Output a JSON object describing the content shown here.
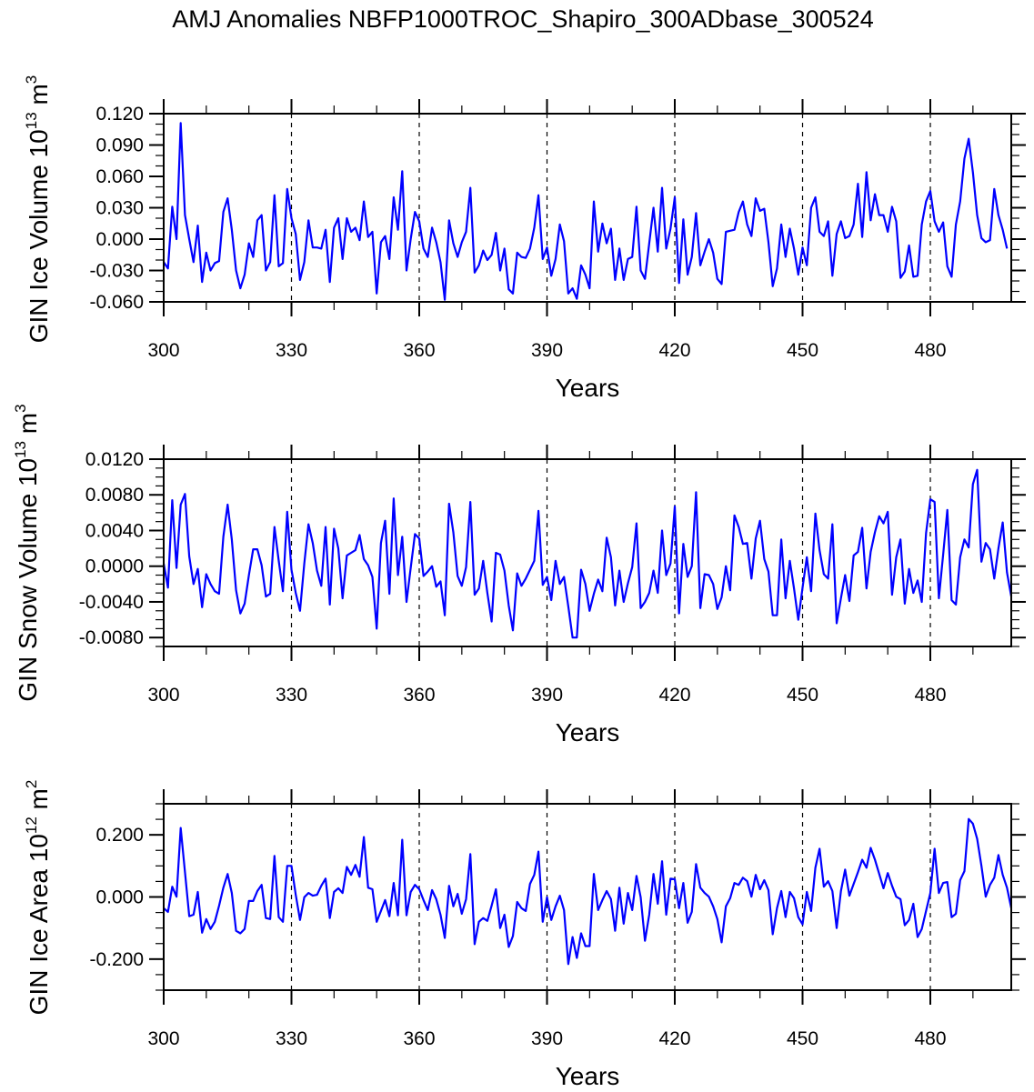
{
  "chart_data": [
    {
      "type": "line",
      "title": "AMJ Anomalies NBFP1000TROC_Shapiro_300ADbase_300524",
      "ylabel": "GIN Ice Volume 10",
      "ylabel_exponent": "13",
      "ylabel_unit": " m",
      "ylabel_unit_exponent": "3",
      "xlabel": "Years",
      "xlim": [
        300,
        499
      ],
      "ylim": [
        -0.06,
        0.12
      ],
      "ytick_values": [
        0.12,
        0.09,
        0.06,
        0.03,
        0.0,
        -0.03,
        -0.06
      ],
      "ytick_labels": [
        "0.120",
        "0.090",
        "0.060",
        "0.030",
        "0.000",
        "-0.030",
        "-0.060"
      ],
      "yminor_step": 0.01,
      "xtick_values": [
        300,
        330,
        360,
        390,
        420,
        450,
        480
      ],
      "xtick_labels": [
        "300",
        "330",
        "360",
        "390",
        "420",
        "450",
        "480"
      ],
      "xminor_step": 10,
      "ref_lines_x": [
        330,
        360,
        390,
        420,
        450,
        480
      ],
      "line_color": "#0000ff",
      "x_start": 300,
      "x_step": 1,
      "values": [
        -0.022,
        -0.028,
        0.031,
        0.0,
        0.111,
        0.023,
        0.0,
        -0.022,
        0.013,
        -0.041,
        -0.013,
        -0.03,
        -0.023,
        -0.021,
        0.026,
        0.039,
        0.009,
        -0.03,
        -0.047,
        -0.034,
        -0.004,
        -0.017,
        0.018,
        0.023,
        -0.03,
        -0.022,
        0.042,
        -0.026,
        -0.023,
        0.048,
        0.02,
        0.005,
        -0.039,
        -0.022,
        0.018,
        -0.008,
        -0.008,
        -0.009,
        0.009,
        -0.041,
        0.011,
        0.02,
        -0.019,
        0.02,
        0.007,
        0.011,
        -0.001,
        0.036,
        0.002,
        0.007,
        -0.052,
        -0.003,
        0.003,
        -0.019,
        0.04,
        0.009,
        0.065,
        -0.03,
        0.0,
        0.026,
        0.017,
        -0.009,
        -0.017,
        0.011,
        -0.003,
        -0.022,
        -0.058,
        0.018,
        -0.004,
        -0.017,
        -0.003,
        0.007,
        0.049,
        -0.032,
        -0.025,
        -0.011,
        -0.02,
        -0.015,
        0.006,
        -0.03,
        -0.009,
        -0.048,
        -0.052,
        -0.013,
        -0.017,
        -0.018,
        -0.009,
        0.011,
        0.042,
        -0.019,
        -0.008,
        -0.035,
        -0.019,
        0.014,
        -0.002,
        -0.052,
        -0.047,
        -0.057,
        -0.025,
        -0.034,
        -0.047,
        0.036,
        -0.012,
        0.015,
        -0.004,
        0.01,
        -0.039,
        -0.009,
        -0.039,
        -0.019,
        -0.017,
        0.031,
        -0.03,
        -0.038,
        -0.004,
        0.03,
        -0.012,
        0.049,
        -0.009,
        0.01,
        0.04,
        -0.042,
        0.019,
        -0.034,
        -0.017,
        0.025,
        -0.025,
        -0.012,
        0.0,
        -0.013,
        -0.038,
        -0.043,
        0.007,
        0.008,
        0.009,
        0.026,
        0.036,
        0.014,
        0.003,
        0.039,
        0.027,
        0.029,
        -0.003,
        -0.045,
        -0.028,
        0.014,
        -0.017,
        0.01,
        -0.009,
        -0.034,
        -0.008,
        -0.025,
        0.03,
        0.04,
        0.007,
        0.003,
        0.017,
        -0.035,
        0.005,
        0.017,
        0.001,
        0.003,
        0.014,
        0.053,
        0.002,
        0.064,
        0.018,
        0.043,
        0.023,
        0.023,
        0.007,
        0.031,
        0.017,
        -0.037,
        -0.031,
        -0.006,
        -0.036,
        -0.035,
        0.014,
        0.036,
        0.046,
        0.017,
        0.007,
        0.016,
        -0.026,
        -0.036,
        0.014,
        0.036,
        0.077,
        0.096,
        0.064,
        0.023,
        0.001,
        -0.003,
        -0.001,
        0.048,
        0.023,
        0.009,
        -0.009
      ]
    },
    {
      "type": "line",
      "ylabel": "GIN Snow Volume 10",
      "ylabel_exponent": "13",
      "ylabel_unit": " m",
      "ylabel_unit_exponent": "3",
      "xlabel": "Years",
      "xlim": [
        300,
        499
      ],
      "ylim": [
        -0.009,
        0.012
      ],
      "ytick_values": [
        0.012,
        0.008,
        0.004,
        0.0,
        -0.004,
        -0.008
      ],
      "ytick_labels": [
        "0.0120",
        "0.0080",
        "0.0040",
        "0.0000",
        "-0.0040",
        "-0.0080"
      ],
      "yminor_step": 0.001,
      "xtick_values": [
        300,
        330,
        360,
        390,
        420,
        450,
        480
      ],
      "xtick_labels": [
        "300",
        "330",
        "360",
        "390",
        "420",
        "450",
        "480"
      ],
      "xminor_step": 10,
      "ref_lines_x": [
        330,
        360,
        390,
        420,
        450,
        480
      ],
      "line_color": "#0000ff",
      "x_start": 300,
      "x_step": 1,
      "values": [
        0.0003,
        -0.0024,
        0.0074,
        -0.0002,
        0.0069,
        0.0081,
        0.0011,
        -0.002,
        -0.0003,
        -0.0046,
        -0.0009,
        -0.002,
        -0.0028,
        -0.0031,
        0.0033,
        0.0069,
        0.003,
        -0.0027,
        -0.0053,
        -0.0042,
        -0.001,
        0.0019,
        0.0019,
        0.0001,
        -0.0034,
        -0.0031,
        0.0044,
        0.0006,
        -0.0028,
        0.0061,
        -0.0004,
        -0.003,
        -0.005,
        0.0003,
        0.0047,
        0.0026,
        -0.0005,
        -0.0022,
        0.0044,
        -0.0043,
        0.0042,
        0.002,
        -0.0036,
        0.0012,
        0.0015,
        0.0018,
        0.0035,
        0.0008,
        0.0001,
        -0.0012,
        -0.007,
        0.0026,
        0.0051,
        -0.0031,
        0.0076,
        -0.001,
        0.0033,
        -0.004,
        -0.0002,
        0.0036,
        0.0031,
        -0.0011,
        -0.0006,
        0.0,
        -0.0023,
        -0.0017,
        -0.0055,
        0.007,
        0.0038,
        -0.0011,
        -0.0022,
        -0.0001,
        0.0072,
        -0.0032,
        -0.0025,
        0.0006,
        -0.003,
        -0.0062,
        0.0015,
        0.0013,
        -0.0005,
        -0.0044,
        -0.0072,
        -0.0008,
        -0.0022,
        -0.0014,
        -0.0004,
        0.0006,
        0.0062,
        -0.0021,
        -0.0012,
        -0.0038,
        0.0006,
        -0.002,
        -0.0012,
        -0.0045,
        -0.008,
        -0.008,
        -0.0004,
        -0.002,
        -0.005,
        -0.0031,
        -0.0015,
        -0.0028,
        0.0032,
        0.001,
        -0.0044,
        -0.0005,
        -0.004,
        -0.0019,
        -0.0001,
        0.0048,
        -0.0047,
        -0.004,
        -0.003,
        -0.0005,
        -0.003,
        0.004,
        -0.001,
        0.0003,
        0.0067,
        -0.0053,
        0.0025,
        -0.0012,
        0.0,
        0.0083,
        -0.0047,
        -0.0009,
        -0.001,
        -0.002,
        -0.0048,
        -0.0035,
        0.0,
        -0.0027,
        0.0057,
        0.0044,
        0.0025,
        0.0026,
        -0.0014,
        0.0031,
        0.0051,
        0.0008,
        -0.0006,
        -0.0055,
        -0.0055,
        0.003,
        -0.0036,
        0.0006,
        -0.0025,
        -0.006,
        -0.0024,
        0.001,
        -0.0028,
        0.0059,
        0.0018,
        -0.0009,
        -0.0014,
        0.0047,
        -0.0064,
        -0.0036,
        -0.001,
        -0.0039,
        0.0012,
        0.0016,
        0.0043,
        -0.0025,
        0.0016,
        0.0038,
        0.0056,
        0.0048,
        0.0061,
        -0.0032,
        0.001,
        0.003,
        -0.0042,
        -0.0003,
        -0.003,
        -0.0016,
        -0.004,
        0.0037,
        0.0075,
        0.0072,
        -0.0036,
        0.0013,
        0.0063,
        -0.0038,
        -0.0043,
        0.001,
        0.003,
        0.0021,
        0.0092,
        0.0108,
        0.0005,
        0.0026,
        0.0019,
        -0.0014,
        0.002,
        0.0049,
        -0.0007,
        -0.0034
      ]
    },
    {
      "type": "line",
      "ylabel": "GIN Ice Area 10",
      "ylabel_exponent": "12",
      "ylabel_unit": " m",
      "ylabel_unit_exponent": "2",
      "xlabel": "Years",
      "xlim": [
        300,
        499
      ],
      "ylim": [
        -0.3,
        0.3
      ],
      "ytick_values": [
        0.2,
        0.0,
        -0.2
      ],
      "ytick_labels": [
        "0.200",
        "0.000",
        "-0.200"
      ],
      "yminor_step": 0.05,
      "xtick_values": [
        300,
        330,
        360,
        390,
        420,
        450,
        480
      ],
      "xtick_labels": [
        "300",
        "330",
        "360",
        "390",
        "420",
        "450",
        "480"
      ],
      "xminor_step": 10,
      "ref_lines_x": [
        330,
        360,
        390,
        420,
        450,
        480
      ],
      "line_color": "#0000ff",
      "x_start": 300,
      "x_step": 1,
      "values": [
        -0.036,
        -0.048,
        0.033,
        0.001,
        0.222,
        0.08,
        -0.062,
        -0.057,
        0.016,
        -0.115,
        -0.071,
        -0.103,
        -0.08,
        -0.028,
        0.03,
        0.074,
        0.013,
        -0.109,
        -0.117,
        -0.103,
        -0.013,
        -0.013,
        0.019,
        0.039,
        -0.068,
        -0.071,
        0.132,
        -0.065,
        -0.08,
        0.1,
        0.1,
        0.007,
        -0.074,
        -0.001,
        0.013,
        0.004,
        0.007,
        0.036,
        0.059,
        -0.068,
        0.016,
        0.028,
        0.013,
        0.097,
        0.071,
        0.103,
        0.065,
        0.193,
        0.03,
        0.025,
        -0.08,
        -0.045,
        -0.01,
        -0.062,
        0.045,
        -0.059,
        0.184,
        -0.059,
        0.016,
        0.039,
        0.025,
        -0.01,
        -0.042,
        0.022,
        -0.007,
        -0.057,
        -0.132,
        0.036,
        -0.03,
        0.01,
        -0.054,
        -0.007,
        0.138,
        -0.152,
        -0.08,
        -0.068,
        -0.077,
        -0.028,
        0.025,
        -0.1,
        -0.057,
        -0.161,
        -0.126,
        -0.016,
        -0.036,
        -0.045,
        0.042,
        0.071,
        0.146,
        -0.08,
        -0.001,
        -0.074,
        -0.03,
        0.004,
        -0.042,
        -0.216,
        -0.129,
        -0.196,
        -0.117,
        -0.158,
        -0.158,
        0.074,
        -0.042,
        -0.01,
        0.019,
        -0.007,
        -0.109,
        0.03,
        -0.086,
        0.013,
        -0.042,
        0.068,
        -0.001,
        -0.141,
        -0.057,
        0.074,
        -0.022,
        0.115,
        -0.057,
        0.059,
        0.057,
        -0.036,
        0.045,
        -0.083,
        -0.048,
        0.106,
        0.03,
        0.013,
        0.001,
        -0.03,
        -0.071,
        -0.146,
        -0.03,
        -0.004,
        0.045,
        0.039,
        0.062,
        0.051,
        0.001,
        0.071,
        0.025,
        0.054,
        0.022,
        -0.12,
        -0.036,
        0.019,
        -0.065,
        0.016,
        -0.004,
        -0.065,
        -0.088,
        0.016,
        -0.045,
        0.094,
        0.155,
        0.033,
        0.051,
        0.019,
        -0.1,
        0.019,
        0.088,
        0.004,
        0.042,
        0.08,
        0.12,
        0.094,
        0.158,
        0.12,
        0.074,
        0.028,
        0.077,
        0.036,
        0.001,
        -0.007,
        -0.091,
        -0.074,
        -0.022,
        -0.129,
        -0.103,
        -0.045,
        0.013,
        0.155,
        0.013,
        0.045,
        0.048,
        -0.065,
        -0.054,
        0.054,
        0.083,
        0.251,
        0.236,
        0.187,
        0.1,
        0.001,
        0.039,
        0.062,
        0.135,
        0.071,
        0.03,
        -0.036
      ]
    }
  ]
}
